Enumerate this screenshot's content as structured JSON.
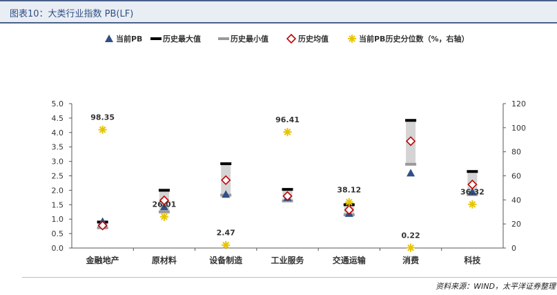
{
  "header": {
    "title": "图表10：大类行业指数 PB(LF)"
  },
  "footer": {
    "source": "资料来源：WIND，太平洋证券整理"
  },
  "chart_data": {
    "type": "scatter",
    "categories": [
      "金融地产",
      "原材料",
      "设备制造",
      "工业服务",
      "交通运输",
      "消费",
      "科技"
    ],
    "series": [
      {
        "name": "当前PB",
        "axis": "left",
        "marker": "triangle",
        "color": "#2f4f86",
        "values": [
          0.92,
          1.43,
          1.86,
          1.75,
          1.2,
          2.6,
          1.95
        ]
      },
      {
        "name": "历史最大值",
        "axis": "left",
        "marker": "dash",
        "color": "#000000",
        "values": [
          0.9,
          2.0,
          2.92,
          2.03,
          1.5,
          4.42,
          2.65
        ]
      },
      {
        "name": "历史最小值",
        "axis": "left",
        "marker": "dash",
        "color": "#999999",
        "values": [
          0.7,
          1.25,
          1.83,
          1.63,
          1.15,
          2.9,
          1.85
        ]
      },
      {
        "name": "历史均值",
        "axis": "left",
        "marker": "diamond",
        "color": "#c00000",
        "values": [
          0.78,
          1.65,
          2.35,
          1.8,
          1.32,
          3.7,
          2.2
        ]
      },
      {
        "name": "当前PB历史分位数（%，右轴）",
        "axis": "right",
        "marker": "star",
        "color": "#e8c400",
        "values": [
          98.35,
          26.01,
          2.47,
          96.41,
          38.12,
          0.22,
          36.32
        ]
      }
    ],
    "data_labels": [
      "98.35",
      "26.01",
      "2.47",
      "96.41",
      "38.12",
      "0.22",
      "36.32"
    ],
    "left_axis": {
      "min": 0,
      "max": 5,
      "ticks": [
        "0.0",
        "0.5",
        "1.0",
        "1.5",
        "2.0",
        "2.5",
        "3.0",
        "3.5",
        "4.0",
        "4.5",
        "5.0"
      ]
    },
    "right_axis": {
      "min": 0,
      "max": 120,
      "ticks": [
        "0",
        "20",
        "40",
        "60",
        "80",
        "100",
        "120"
      ]
    },
    "range_bar_color": "#d4d4d4",
    "grid": false,
    "legend_position": "top"
  }
}
